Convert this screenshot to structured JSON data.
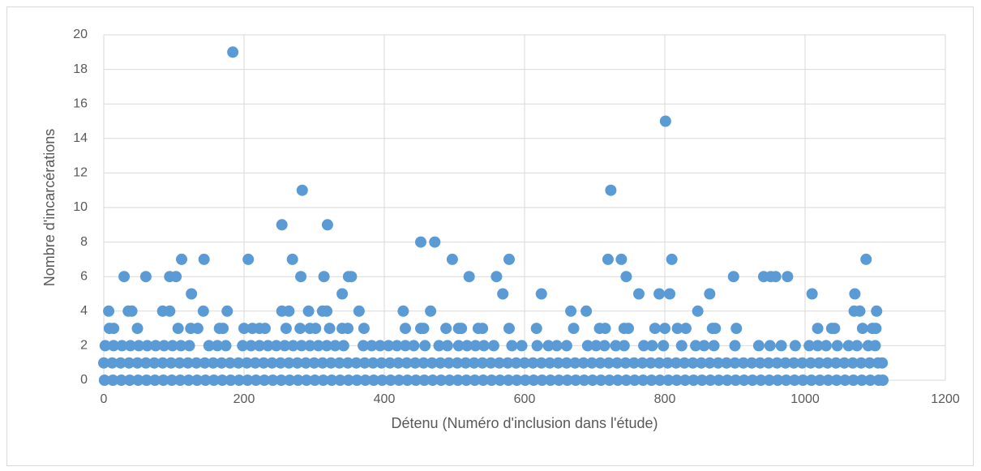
{
  "chart_data": {
    "type": "scatter",
    "x_label": "Détenu (Numéro d'inclusion dans l'étude)",
    "y_label": "Nombre d'incarcérations",
    "color": "#5b9bd5",
    "grid": true,
    "xlim": [
      0,
      1200
    ],
    "xticks": [
      0,
      200,
      400,
      600,
      800,
      1000,
      1200
    ],
    "ylim": [
      0,
      20
    ],
    "yticks": [
      0,
      2,
      4,
      6,
      8,
      10,
      12,
      14,
      16,
      18,
      20
    ],
    "x": [
      1,
      13,
      25,
      37,
      49,
      61,
      73,
      85,
      97,
      109,
      121,
      133,
      145,
      157,
      169,
      181,
      193,
      205,
      217,
      229,
      241,
      253,
      265,
      277,
      289,
      301,
      313,
      325,
      337,
      349,
      361,
      373,
      385,
      397,
      409,
      421,
      433,
      445,
      457,
      469,
      481,
      493,
      505,
      517,
      529,
      541,
      553,
      565,
      577,
      589,
      601,
      613,
      625,
      637,
      649,
      661,
      673,
      685,
      697,
      709,
      721,
      733,
      745,
      757,
      769,
      781,
      793,
      805,
      817,
      829,
      841,
      853,
      865,
      877,
      889,
      901,
      913,
      925,
      937,
      949,
      961,
      973,
      985,
      997,
      1009,
      1021,
      1033,
      1045,
      1057,
      1069,
      1081,
      1093,
      1105,
      1111,
      0,
      12,
      24,
      36,
      48,
      60,
      72,
      84,
      96,
      108,
      120,
      132,
      144,
      156,
      168,
      180,
      192,
      204,
      216,
      228,
      240,
      252,
      264,
      276,
      288,
      300,
      312,
      324,
      336,
      348,
      360,
      372,
      384,
      396,
      408,
      420,
      432,
      444,
      456,
      468,
      480,
      492,
      504,
      516,
      528,
      540,
      552,
      564,
      576,
      588,
      600,
      612,
      624,
      636,
      648,
      660,
      672,
      684,
      696,
      708,
      720,
      732,
      744,
      756,
      768,
      780,
      792,
      804,
      816,
      828,
      840,
      852,
      864,
      876,
      888,
      900,
      912,
      924,
      936,
      948,
      960,
      972,
      984,
      996,
      1008,
      1020,
      1032,
      1044,
      1056,
      1068,
      1080,
      1092,
      1104,
      1110,
      2,
      14,
      26,
      38,
      50,
      62,
      74,
      86,
      98,
      110,
      122,
      150,
      162,
      174,
      198,
      210,
      222,
      234,
      246,
      258,
      270,
      282,
      294,
      306,
      318,
      330,
      342,
      370,
      382,
      394,
      406,
      418,
      430,
      442,
      458,
      478,
      490,
      506,
      518,
      530,
      542,
      556,
      582,
      596,
      618,
      634,
      646,
      660,
      690,
      702,
      714,
      730,
      742,
      770,
      782,
      798,
      824,
      844,
      856,
      870,
      900,
      934,
      950,
      966,
      986,
      1006,
      1018,
      1030,
      1046,
      1062,
      1074,
      1090,
      1100,
      8,
      14,
      48,
      106,
      124,
      134,
      165,
      170,
      200,
      212,
      222,
      230,
      260,
      280,
      294,
      302,
      322,
      340,
      348,
      371,
      430,
      452,
      456,
      488,
      506,
      510,
      534,
      540,
      578,
      617,
      670,
      707,
      715,
      742,
      748,
      786,
      800,
      818,
      830,
      868,
      872,
      902,
      1018,
      1038,
      1042,
      1082,
      1096,
      1101,
      7,
      35,
      40,
      84,
      94,
      142,
      176,
      254,
      264,
      292,
      312,
      318,
      364,
      427,
      466,
      666,
      688,
      847,
      1070,
      1078,
      1102,
      125,
      340,
      569,
      624,
      763,
      792,
      807,
      864,
      1010,
      1071,
      29,
      60,
      94,
      103,
      281,
      314,
      349,
      353,
      521,
      560,
      745,
      898,
      941,
      951,
      958,
      975,
      111,
      143,
      206,
      269,
      497,
      578,
      719,
      738,
      810,
      1087,
      452,
      472,
      254,
      319,
      283,
      723,
      801,
      184
    ],
    "values": [
      0,
      0,
      0,
      0,
      0,
      0,
      0,
      0,
      0,
      0,
      0,
      0,
      0,
      0,
      0,
      0,
      0,
      0,
      0,
      0,
      0,
      0,
      0,
      0,
      0,
      0,
      0,
      0,
      0,
      0,
      0,
      0,
      0,
      0,
      0,
      0,
      0,
      0,
      0,
      0,
      0,
      0,
      0,
      0,
      0,
      0,
      0,
      0,
      0,
      0,
      0,
      0,
      0,
      0,
      0,
      0,
      0,
      0,
      0,
      0,
      0,
      0,
      0,
      0,
      0,
      0,
      0,
      0,
      0,
      0,
      0,
      0,
      0,
      0,
      0,
      0,
      0,
      0,
      0,
      0,
      0,
      0,
      0,
      0,
      0,
      0,
      0,
      0,
      0,
      0,
      0,
      0,
      0,
      0,
      1,
      1,
      1,
      1,
      1,
      1,
      1,
      1,
      1,
      1,
      1,
      1,
      1,
      1,
      1,
      1,
      1,
      1,
      1,
      1,
      1,
      1,
      1,
      1,
      1,
      1,
      1,
      1,
      1,
      1,
      1,
      1,
      1,
      1,
      1,
      1,
      1,
      1,
      1,
      1,
      1,
      1,
      1,
      1,
      1,
      1,
      1,
      1,
      1,
      1,
      1,
      1,
      1,
      1,
      1,
      1,
      1,
      1,
      1,
      1,
      1,
      1,
      1,
      1,
      1,
      1,
      1,
      1,
      1,
      1,
      1,
      1,
      1,
      1,
      1,
      1,
      1,
      1,
      1,
      1,
      1,
      1,
      1,
      1,
      1,
      1,
      1,
      1,
      1,
      1,
      1,
      1,
      1,
      1,
      2,
      2,
      2,
      2,
      2,
      2,
      2,
      2,
      2,
      2,
      2,
      2,
      2,
      2,
      2,
      2,
      2,
      2,
      2,
      2,
      2,
      2,
      2,
      2,
      2,
      2,
      2,
      2,
      2,
      2,
      2,
      2,
      2,
      2,
      2,
      2,
      2,
      2,
      2,
      2,
      2,
      2,
      2,
      2,
      2,
      2,
      2,
      2,
      2,
      2,
      2,
      2,
      2,
      2,
      2,
      2,
      2,
      2,
      2,
      2,
      2,
      2,
      2,
      2,
      2,
      2,
      2,
      2,
      2,
      2,
      2,
      2,
      2,
      3,
      3,
      3,
      3,
      3,
      3,
      3,
      3,
      3,
      3,
      3,
      3,
      3,
      3,
      3,
      3,
      3,
      3,
      3,
      3,
      3,
      3,
      3,
      3,
      3,
      3,
      3,
      3,
      3,
      3,
      3,
      3,
      3,
      3,
      3,
      3,
      3,
      3,
      3,
      3,
      3,
      3,
      3,
      3,
      3,
      3,
      3,
      3,
      4,
      4,
      4,
      4,
      4,
      4,
      4,
      4,
      4,
      4,
      4,
      4,
      4,
      4,
      4,
      4,
      4,
      4,
      4,
      4,
      4,
      5,
      5,
      5,
      5,
      5,
      5,
      5,
      5,
      5,
      5,
      6,
      6,
      6,
      6,
      6,
      6,
      6,
      6,
      6,
      6,
      6,
      6,
      6,
      6,
      6,
      6,
      7,
      7,
      7,
      7,
      7,
      7,
      7,
      7,
      7,
      7,
      8,
      8,
      9,
      9,
      11,
      11,
      15,
      19
    ]
  }
}
